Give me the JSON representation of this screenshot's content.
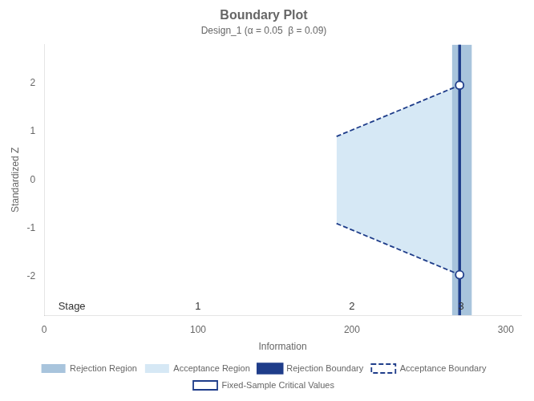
{
  "chart_data": {
    "type": "boundary",
    "title": "Boundary Plot",
    "subtitle": "Design_1 (α = 0.05  β = 0.09)",
    "xlabel": "Information",
    "ylabel": "Standardized Z",
    "xlim": [
      0,
      310
    ],
    "ylim": [
      -2.8,
      2.8
    ],
    "xticks": [
      0,
      100,
      200,
      300
    ],
    "yticks": [
      -2,
      -1,
      0,
      1,
      2
    ],
    "grid": false,
    "legend": "bottom",
    "series": [
      {
        "name": "Rejection Region",
        "type": "band",
        "color": "#a8c4dc",
        "x": [
          265,
          278
        ]
      },
      {
        "name": "Acceptance Region",
        "type": "area",
        "color": "#d6e8f5",
        "x": [
          190,
          270
        ],
        "upper": [
          0.9,
          1.96
        ],
        "lower": [
          -0.9,
          -1.96
        ]
      },
      {
        "name": "Rejection Boundary",
        "type": "vline",
        "color": "#1f3d8a",
        "x": 270
      },
      {
        "name": "Acceptance Boundary",
        "type": "line",
        "line_style": "dashed",
        "color": "#1f3d8a",
        "segments": [
          {
            "x": [
              190,
              190,
              270
            ],
            "y": [
              0.9,
              0.9,
              1.96
            ]
          },
          {
            "x": [
              190,
              190,
              270
            ],
            "y": [
              -0.9,
              -0.9,
              -1.96
            ]
          }
        ]
      },
      {
        "name": "Fixed-Sample Critical Values",
        "type": "scatter",
        "marker": "circle",
        "color": "#1f3d8a",
        "x": [
          270,
          270
        ],
        "values": [
          1.96,
          -1.96
        ]
      }
    ],
    "reference_lines": [
      {
        "x": 270,
        "color": "#b0c4d4"
      }
    ],
    "annotations": [
      {
        "text": "Stage",
        "x": 18,
        "y": -2.62
      },
      {
        "text": "1",
        "x": 100,
        "y": -2.62
      },
      {
        "text": "2",
        "x": 200,
        "y": -2.62
      },
      {
        "text": "3",
        "x": 271,
        "y": -2.62
      }
    ]
  }
}
